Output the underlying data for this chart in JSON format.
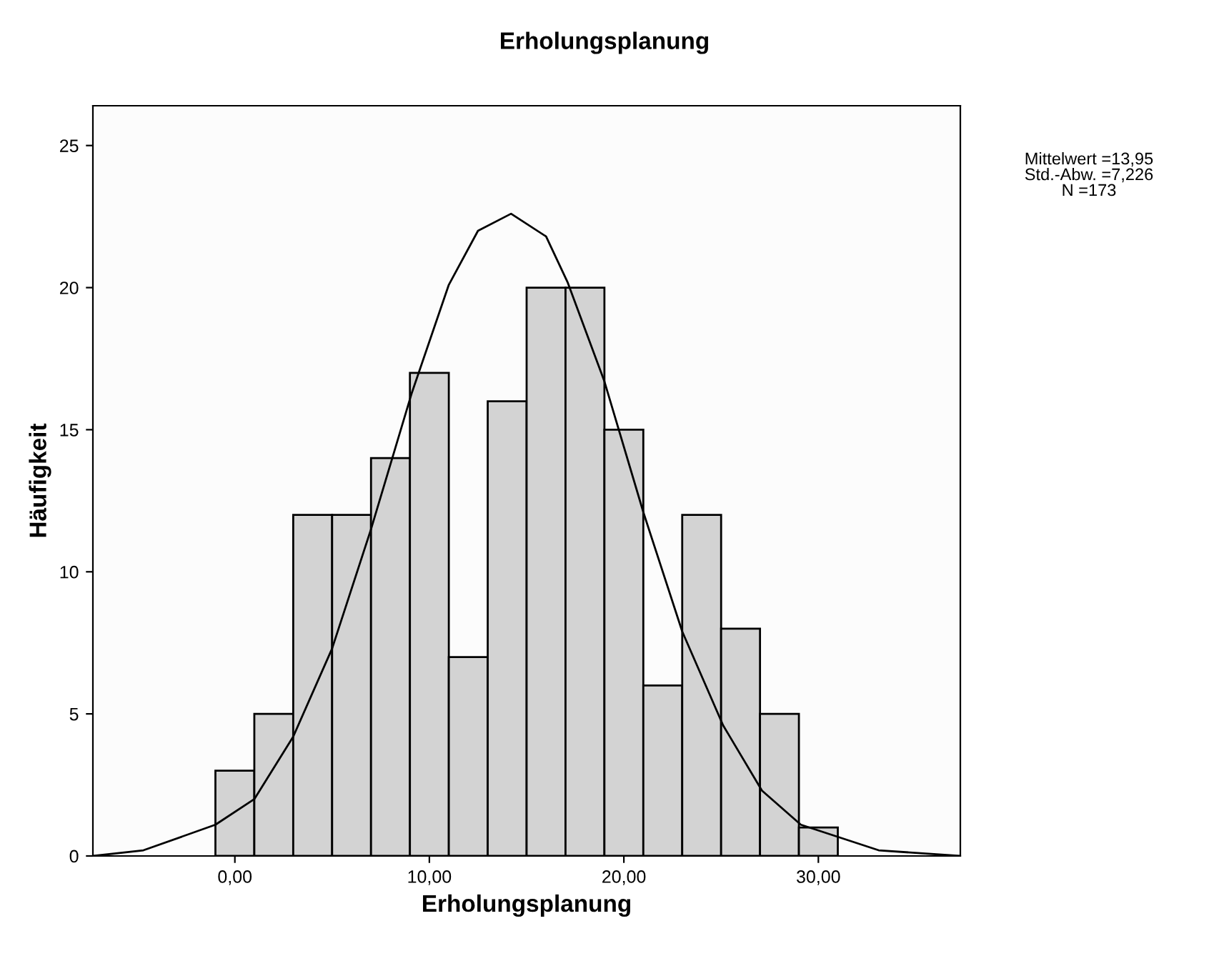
{
  "chart_data": {
    "type": "histogram",
    "title": "Erholungsplanung",
    "xlabel": "Erholungsplanung",
    "ylabel": "Häufigkeit",
    "bins": [
      -1,
      1,
      3,
      5,
      7,
      9,
      11,
      13,
      15,
      17,
      19,
      21,
      23,
      25,
      27,
      29,
      31
    ],
    "values": [
      3,
      5,
      12,
      12,
      14,
      17,
      7,
      16,
      20,
      20,
      15,
      6,
      12,
      8,
      5,
      1
    ],
    "color": "#d3d3d3",
    "series": [
      {
        "type": "line",
        "color": "#000000",
        "x": [
          -7.3,
          -4.7,
          -1.0,
          1.0,
          3.0,
          5.0,
          7.0,
          9.1,
          11.0,
          12.5,
          14.2,
          16.0,
          17.1,
          19.0,
          21.0,
          23.0,
          25.1,
          27.1,
          29.1,
          33.1,
          37.3
        ],
        "values": [
          0.0,
          0.2,
          1.1,
          2.0,
          4.2,
          7.3,
          11.5,
          16.3,
          20.1,
          22.0,
          22.6,
          21.8,
          20.2,
          16.7,
          12.1,
          7.9,
          4.6,
          2.3,
          1.1,
          0.2,
          0.0
        ]
      }
    ],
    "xlim": [
      -7.3,
      37.3
    ],
    "ylim": [
      0,
      26.4
    ],
    "xticks": [
      {
        "value": 0,
        "label": "0,00"
      },
      {
        "value": 10,
        "label": "10,00"
      },
      {
        "value": 20,
        "label": "20,00"
      },
      {
        "value": 30,
        "label": "30,00"
      }
    ],
    "yticks": [
      0,
      5,
      10,
      15,
      20,
      25
    ],
    "grid": false,
    "legend": false,
    "annotations": [
      "Mittelwert =13,95",
      "Std.-Abw. =7,226",
      "N =173"
    ]
  }
}
